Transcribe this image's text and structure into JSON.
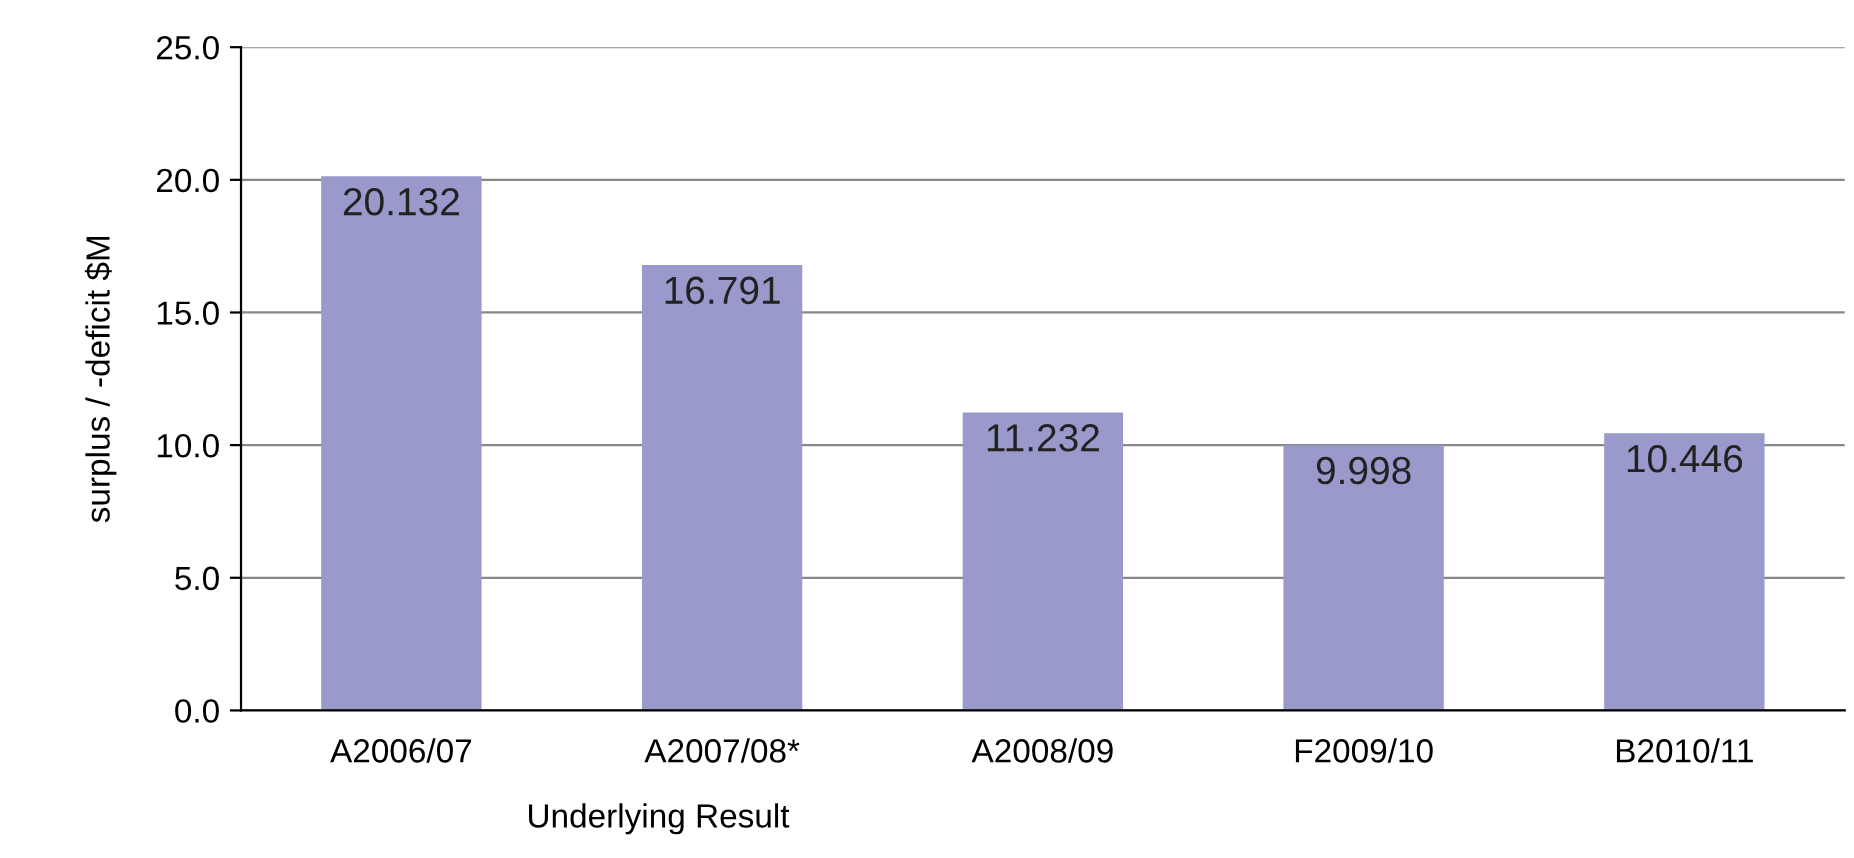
{
  "chart_data": {
    "type": "bar",
    "ylabel": "surplus / -deficit $M",
    "xlabel": "Underlying Result",
    "categories": [
      "A2006/07",
      "A2007/08*",
      "A2008/09",
      "F2009/10",
      "B2010/11"
    ],
    "values": [
      20.132,
      16.791,
      11.232,
      9.998,
      10.446
    ],
    "color": "#9999cc",
    "ylim": [
      0,
      25
    ],
    "yticks": [
      {
        "value": 0,
        "label": "0.0"
      },
      {
        "value": 5,
        "label": "5.0"
      },
      {
        "value": 10,
        "label": "10.0"
      },
      {
        "value": 15,
        "label": "15.0"
      },
      {
        "value": 20,
        "label": "20.0"
      },
      {
        "value": 25,
        "label": "25.0"
      }
    ],
    "grid": "y",
    "data_labels": true
  }
}
